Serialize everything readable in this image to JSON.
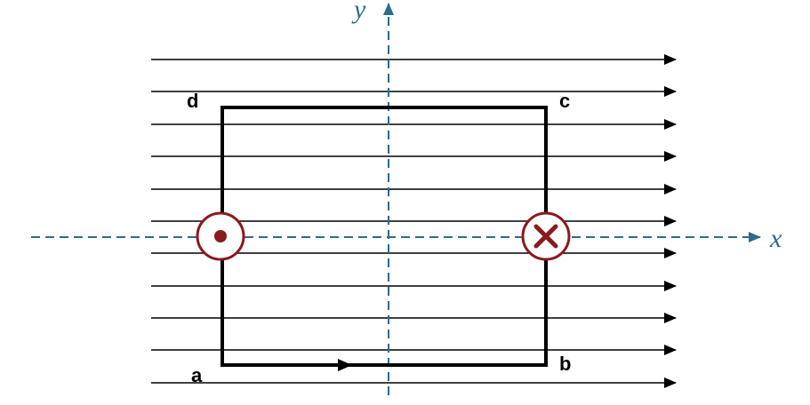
{
  "labels": {
    "corner_a": "a",
    "corner_b": "b",
    "corner_c": "c",
    "corner_d": "d",
    "axis_x": "x",
    "axis_y": "y"
  },
  "symbols": {
    "left_current": "dot-out-of-page-icon",
    "right_current": "cross-into-page-icon",
    "bottom_arrow": "arrow-right-icon"
  },
  "colors": {
    "field_lines": "#000000",
    "loop": "#000000",
    "axes": "#2e6a8e",
    "current_symbols": "#8b1a1a",
    "background": "#ffffff"
  }
}
